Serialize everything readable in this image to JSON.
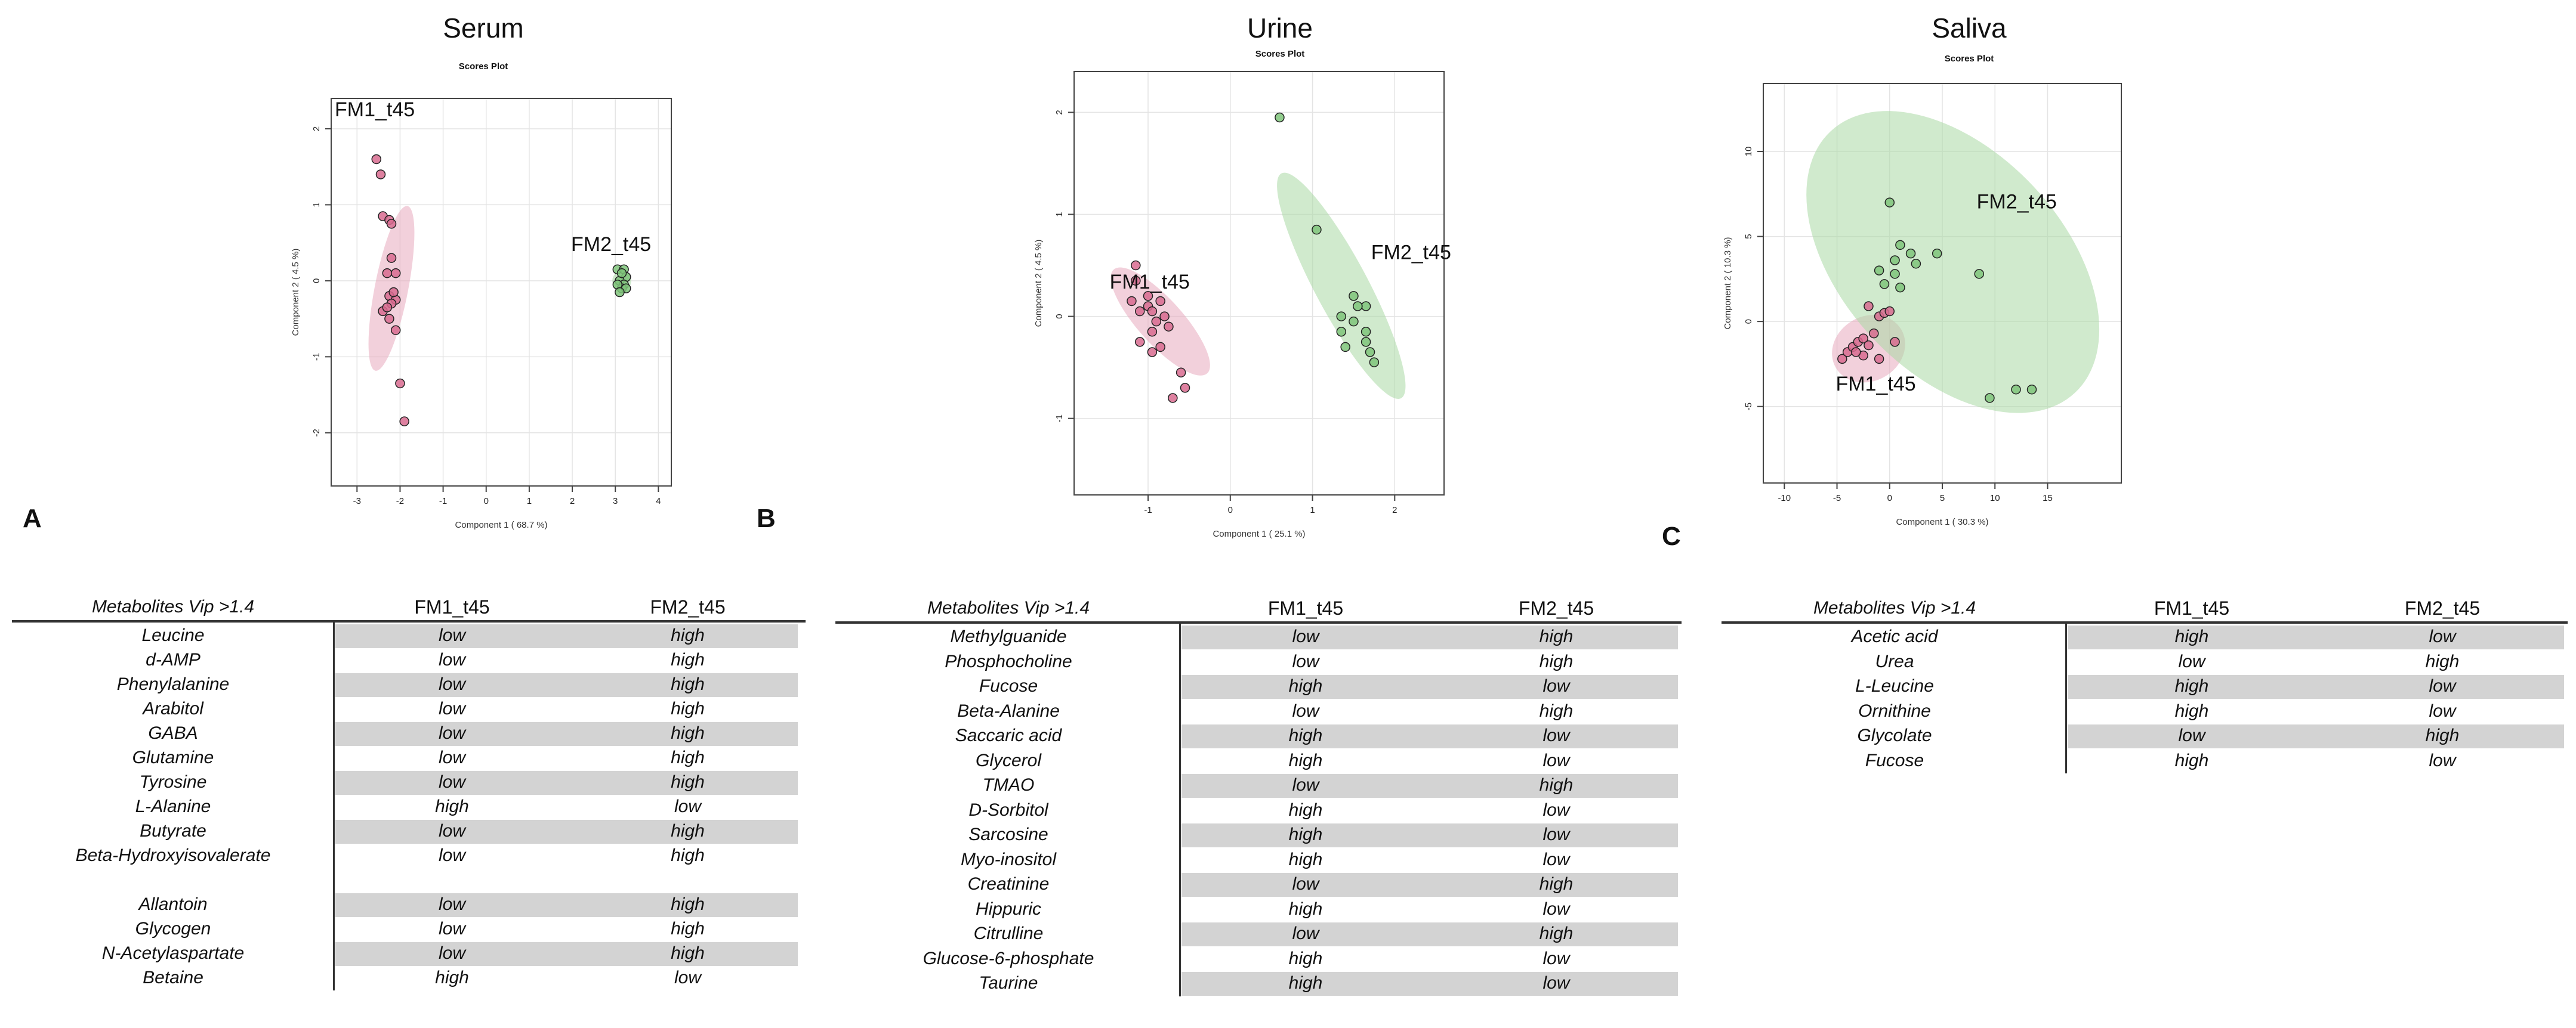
{
  "panels": [
    {
      "letter": "A",
      "title": "Serum",
      "subtitle": "Scores Plot",
      "chart_data": {
        "type": "scatter",
        "title": "Scores Plot",
        "xlabel": "Component 1 ( 68.7 %)",
        "ylabel": "Component 2 ( 4.5 %)",
        "xlim": [
          -3.6,
          4.3
        ],
        "ylim": [
          -2.7,
          2.4
        ],
        "xticks": [
          -3,
          -2,
          -1,
          0,
          1,
          2,
          3,
          4
        ],
        "yticks": [
          -2,
          -1,
          0,
          1,
          2
        ],
        "series": [
          {
            "name": "FM1_t45",
            "label": "FM1_t45",
            "color": "#e7a9bd",
            "ellipse": {
              "cx": -2.2,
              "cy": -0.1,
              "rx": 1.95,
              "ry": 0.22,
              "angle": 79
            },
            "points": [
              [
                -2.55,
                1.6
              ],
              [
                -2.45,
                1.4
              ],
              [
                -2.4,
                0.85
              ],
              [
                -2.25,
                0.8
              ],
              [
                -2.2,
                0.75
              ],
              [
                -2.2,
                0.3
              ],
              [
                -2.3,
                0.1
              ],
              [
                -2.1,
                0.1
              ],
              [
                -2.25,
                -0.2
              ],
              [
                -2.1,
                -0.25
              ],
              [
                -2.2,
                -0.3
              ],
              [
                -2.4,
                -0.4
              ],
              [
                -2.25,
                -0.5
              ],
              [
                -2.1,
                -0.65
              ],
              [
                -2.0,
                -1.35
              ],
              [
                -1.9,
                -1.85
              ],
              [
                -2.3,
                -0.35
              ],
              [
                -2.15,
                -0.15
              ]
            ]
          },
          {
            "name": "FM2_t45",
            "label": "FM2_t45",
            "color": "#a9d8a4",
            "ellipse": {
              "cx": 3.15,
              "cy": 0.0,
              "rx": 0.22,
              "ry": 0.13,
              "angle": 0
            },
            "points": [
              [
                3.05,
                0.15
              ],
              [
                3.2,
                0.15
              ],
              [
                3.25,
                0.05
              ],
              [
                3.1,
                0.0
              ],
              [
                3.2,
                -0.05
              ],
              [
                3.15,
                -0.1
              ],
              [
                3.05,
                -0.05
              ],
              [
                3.25,
                -0.1
              ],
              [
                3.15,
                0.1
              ],
              [
                3.1,
                -0.15
              ]
            ]
          }
        ]
      }
    },
    {
      "letter": "B",
      "title": "Urine",
      "subtitle": "Scores Plot",
      "chart_data": {
        "type": "scatter",
        "title": "Scores Plot",
        "xlabel": "Component 1 ( 25.1 %)",
        "ylabel": "Component 2 ( 4.5 %)",
        "xlim": [
          -1.9,
          2.6
        ],
        "ylim": [
          -1.75,
          2.4
        ],
        "xticks": [
          -1,
          0,
          1,
          2
        ],
        "yticks": [
          -1,
          0,
          1,
          2
        ],
        "series": [
          {
            "name": "FM1_t45",
            "label": "FM1_t45",
            "color": "#e7a9bd",
            "ellipse": {
              "cx": -0.85,
              "cy": -0.05,
              "rx": 0.85,
              "ry": 0.22,
              "angle": -48
            },
            "points": [
              [
                -1.15,
                0.5
              ],
              [
                -1.15,
                0.35
              ],
              [
                -1.2,
                0.15
              ],
              [
                -1.1,
                0.05
              ],
              [
                -1.0,
                0.1
              ],
              [
                -0.95,
                0.05
              ],
              [
                -0.85,
                0.15
              ],
              [
                -0.9,
                -0.05
              ],
              [
                -0.8,
                0.0
              ],
              [
                -0.75,
                -0.1
              ],
              [
                -0.95,
                -0.15
              ],
              [
                -1.1,
                -0.25
              ],
              [
                -0.85,
                -0.3
              ],
              [
                -0.6,
                -0.55
              ],
              [
                -0.55,
                -0.7
              ],
              [
                -0.7,
                -0.8
              ],
              [
                -0.95,
                -0.35
              ],
              [
                -1.0,
                0.2
              ]
            ]
          },
          {
            "name": "FM2_t45",
            "label": "FM2_t45",
            "color": "#a9d8a4",
            "ellipse": {
              "cx": 1.35,
              "cy": 0.3,
              "rx": 1.55,
              "ry": 0.26,
              "angle": -62
            },
            "points": [
              [
                0.6,
                1.95
              ],
              [
                1.05,
                0.85
              ],
              [
                1.5,
                0.2
              ],
              [
                1.65,
                0.1
              ],
              [
                1.35,
                0.0
              ],
              [
                1.5,
                -0.05
              ],
              [
                1.35,
                -0.15
              ],
              [
                1.65,
                -0.15
              ],
              [
                1.65,
                -0.25
              ],
              [
                1.7,
                -0.35
              ],
              [
                1.75,
                -0.45
              ],
              [
                1.4,
                -0.3
              ],
              [
                1.55,
                0.1
              ]
            ]
          }
        ]
      }
    },
    {
      "letter": "C",
      "title": "Saliva",
      "subtitle": "Scores Plot",
      "chart_data": {
        "type": "scatter",
        "title": "Scores Plot",
        "xlabel": "Component 1 ( 30.3 %)",
        "ylabel": "Component 2 ( 10.3 %)",
        "xlim": [
          -12,
          22
        ],
        "ylim": [
          -9.5,
          14
        ],
        "xticks": [
          -10,
          -5,
          0,
          5,
          10,
          15
        ],
        "yticks": [
          -5,
          0,
          5,
          10
        ],
        "series": [
          {
            "name": "FM1_t45",
            "label": "FM1_t45",
            "color": "#e7a9bd",
            "ellipse": {
              "cx": -2.0,
              "cy": -1.6,
              "rx": 3.6,
              "ry": 1.9,
              "angle": 30
            },
            "points": [
              [
                -4.5,
                -2.2
              ],
              [
                -4.0,
                -1.8
              ],
              [
                -3.5,
                -1.5
              ],
              [
                -3.0,
                -1.2
              ],
              [
                -2.5,
                -1.0
              ],
              [
                -2.0,
                -1.4
              ],
              [
                -2.5,
                -2.0
              ],
              [
                -1.5,
                -0.7
              ],
              [
                -1.0,
                0.3
              ],
              [
                -0.5,
                0.5
              ],
              [
                0.0,
                0.6
              ],
              [
                -2.0,
                0.9
              ],
              [
                0.5,
                -1.2
              ],
              [
                -1.0,
                -2.2
              ],
              [
                -3.2,
                -1.8
              ]
            ]
          },
          {
            "name": "FM2_t45",
            "label": "FM2_t45",
            "color": "#a9d8a4",
            "ellipse": {
              "cx": 6.0,
              "cy": 3.5,
              "rx": 17.0,
              "ry": 6.5,
              "angle": -47
            },
            "points": [
              [
                0.0,
                7.0
              ],
              [
                1.0,
                4.5
              ],
              [
                0.5,
                3.6
              ],
              [
                -1.0,
                3.0
              ],
              [
                0.5,
                2.8
              ],
              [
                2.0,
                4.0
              ],
              [
                2.5,
                3.4
              ],
              [
                4.5,
                4.0
              ],
              [
                8.5,
                2.8
              ],
              [
                -0.5,
                2.2
              ],
              [
                1.0,
                2.0
              ],
              [
                9.5,
                -4.5
              ],
              [
                12.0,
                -4.0
              ],
              [
                13.5,
                -4.0
              ]
            ]
          }
        ]
      }
    }
  ],
  "tables": [
    {
      "header": {
        "metabolite": "Metabolites Vip >1.4",
        "col1": "FM1_t45",
        "col2": "FM2_t45"
      },
      "rows": [
        {
          "name": "Leucine",
          "v1": "low",
          "v2": "high",
          "shaded": true
        },
        {
          "name": "d-AMP",
          "v1": "low",
          "v2": "high",
          "shaded": false
        },
        {
          "name": "Phenylalanine",
          "v1": "low",
          "v2": "high",
          "shaded": true
        },
        {
          "name": "Arabitol",
          "v1": "low",
          "v2": "high",
          "shaded": false
        },
        {
          "name": "GABA",
          "v1": "low",
          "v2": "high",
          "shaded": true
        },
        {
          "name": "Glutamine",
          "v1": "low",
          "v2": "high",
          "shaded": false
        },
        {
          "name": "Tyrosine",
          "v1": "low",
          "v2": "high",
          "shaded": true
        },
        {
          "name": "L-Alanine",
          "v1": "high",
          "v2": "low",
          "shaded": false
        },
        {
          "name": "Butyrate",
          "v1": "low",
          "v2": "high",
          "shaded": true
        },
        {
          "name": "Beta-Hydroxyisovalerate",
          "v1": "low",
          "v2": "high",
          "shaded": false
        },
        {
          "name": "",
          "v1": "",
          "v2": "",
          "shaded": false
        },
        {
          "name": "Allantoin",
          "v1": "low",
          "v2": "high",
          "shaded": true
        },
        {
          "name": "Glycogen",
          "v1": "low",
          "v2": "high",
          "shaded": false
        },
        {
          "name": "N-Acetylaspartate",
          "v1": "low",
          "v2": "high",
          "shaded": true
        },
        {
          "name": "Betaine",
          "v1": "high",
          "v2": "low",
          "shaded": false
        }
      ]
    },
    {
      "header": {
        "metabolite": "Metabolites Vip >1.4",
        "col1": "FM1_t45",
        "col2": "FM2_t45"
      },
      "rows": [
        {
          "name": "Methylguanide",
          "v1": "low",
          "v2": "high",
          "shaded": true
        },
        {
          "name": "Phosphocholine",
          "v1": "low",
          "v2": "high",
          "shaded": false
        },
        {
          "name": "Fucose",
          "v1": "high",
          "v2": "low",
          "shaded": true
        },
        {
          "name": "Beta-Alanine",
          "v1": "low",
          "v2": "high",
          "shaded": false
        },
        {
          "name": "Saccaric acid",
          "v1": "high",
          "v2": "low",
          "shaded": true
        },
        {
          "name": "Glycerol",
          "v1": "high",
          "v2": "low",
          "shaded": false
        },
        {
          "name": "TMAO",
          "v1": "low",
          "v2": "high",
          "shaded": true
        },
        {
          "name": "D-Sorbitol",
          "v1": "high",
          "v2": "low",
          "shaded": false
        },
        {
          "name": "Sarcosine",
          "v1": "high",
          "v2": "low",
          "shaded": true
        },
        {
          "name": "Myo-inositol",
          "v1": "high",
          "v2": "low",
          "shaded": false
        },
        {
          "name": "Creatinine",
          "v1": "low",
          "v2": "high",
          "shaded": true
        },
        {
          "name": "Hippuric",
          "v1": "high",
          "v2": "low",
          "shaded": false
        },
        {
          "name": "Citrulline",
          "v1": "low",
          "v2": "high",
          "shaded": true
        },
        {
          "name": "Glucose-6-phosphate",
          "v1": "high",
          "v2": "low",
          "shaded": false
        },
        {
          "name": "Taurine",
          "v1": "high",
          "v2": "low",
          "shaded": true
        }
      ]
    },
    {
      "header": {
        "metabolite": "Metabolites Vip >1.4",
        "col1": "FM1_t45",
        "col2": "FM2_t45"
      },
      "rows": [
        {
          "name": "Acetic acid",
          "v1": "high",
          "v2": "low",
          "shaded": true
        },
        {
          "name": "Urea",
          "v1": "low",
          "v2": "high",
          "shaded": false
        },
        {
          "name": "L-Leucine",
          "v1": "high",
          "v2": "low",
          "shaded": true
        },
        {
          "name": "Ornithine",
          "v1": "high",
          "v2": "low",
          "shaded": false
        },
        {
          "name": "Glycolate",
          "v1": "low",
          "v2": "high",
          "shaded": true
        },
        {
          "name": "Fucose",
          "v1": "high",
          "v2": "low",
          "shaded": false
        }
      ]
    }
  ]
}
